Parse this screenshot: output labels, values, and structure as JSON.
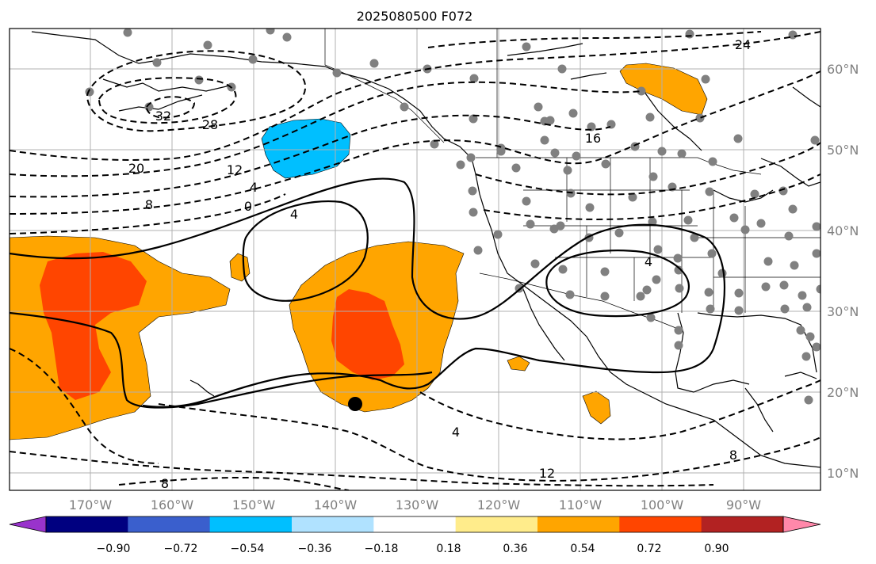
{
  "title": "2025080500 F072",
  "lon_labels": [
    "170°W",
    "160°W",
    "150°W",
    "140°W",
    "130°W",
    "120°W",
    "110°W",
    "100°W",
    "90°W"
  ],
  "lat_labels": [
    "60°N",
    "50°N",
    "40°N",
    "30°N",
    "20°N",
    "10°N"
  ],
  "colorbar": {
    "ticks": [
      "−0.90",
      "−0.72",
      "−0.54",
      "−0.36",
      "−0.18",
      "0.18",
      "0.36",
      "0.54",
      "0.72",
      "0.90"
    ],
    "colors": [
      "#9933cc",
      "#000080",
      "#3a5fcd",
      "#00bfff",
      "#b0e2ff",
      "#ffffff",
      "#ffec8b",
      "#ffa500",
      "#ff4500",
      "#b22222",
      "#ff88aa"
    ]
  },
  "contour_labels": [
    "24",
    "32",
    "28",
    "20",
    "12",
    "16",
    "8",
    "4",
    "0",
    "4",
    "4",
    "4",
    "12",
    "8",
    "8"
  ],
  "colors": {
    "orange": "#ffa500",
    "red_orange": "#ff4500",
    "blue": "#00bfff",
    "dot": "#808080",
    "grid": "#b0b0b0"
  },
  "marker": "black-dot"
}
